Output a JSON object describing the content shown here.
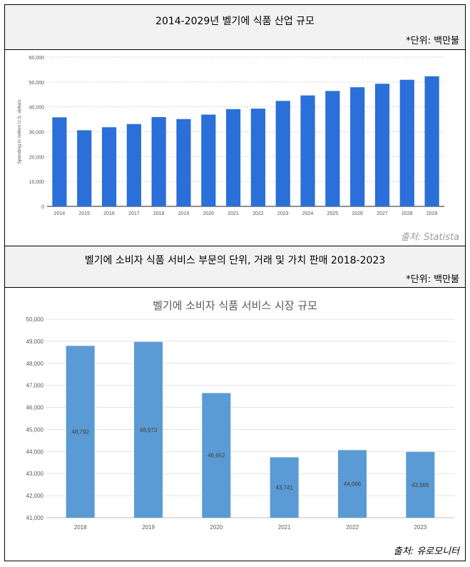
{
  "chart_data": [
    {
      "type": "bar",
      "title": "2014-2029년 벨기에 식품 산업 규모",
      "unit_note": "*단위: 백만불",
      "ylabel": "Spending in million U.S. dollars",
      "categories": [
        "2014",
        "2015",
        "2016",
        "2017",
        "2018",
        "2019",
        "2020",
        "2021",
        "2022",
        "2023",
        "2024",
        "2025",
        "2026",
        "2027",
        "2028",
        "2029"
      ],
      "values": [
        35800,
        30600,
        31800,
        33100,
        35900,
        35100,
        36900,
        39100,
        39300,
        42400,
        44600,
        46400,
        47900,
        49300,
        50900,
        52300
      ],
      "yticks": [
        "0",
        "10,000",
        "20,000",
        "30,000",
        "40,000",
        "50,000",
        "60,000"
      ],
      "ylim": [
        0,
        60000
      ],
      "bar_color": "#2b6fd8",
      "source": "출처: Statista",
      "grid": true
    },
    {
      "type": "bar",
      "title": "벨기에 소비자 식품 서비스 부문의 단위, 거래 및 가치 판매 2018-2023",
      "unit_note": "*단위: 백만불",
      "chart_title": "벨기에 소비자 식품 서비스 시장 규모",
      "categories": [
        "2018",
        "2019",
        "2020",
        "2021",
        "2022",
        "2023"
      ],
      "values": [
        48792,
        48973,
        46652,
        43741,
        44066,
        43986
      ],
      "data_labels": [
        "48,792",
        "48,973",
        "46,652",
        "43,741",
        "44,066",
        "43,986"
      ],
      "yticks": [
        "41,000",
        "42,000",
        "43,000",
        "44,000",
        "45,000",
        "46,000",
        "47,000",
        "48,000",
        "49,000",
        "50,000"
      ],
      "ylim": [
        41000,
        50000
      ],
      "bar_color": "#5b9bd5",
      "source": "출처: 유로모니터",
      "grid": true
    }
  ]
}
